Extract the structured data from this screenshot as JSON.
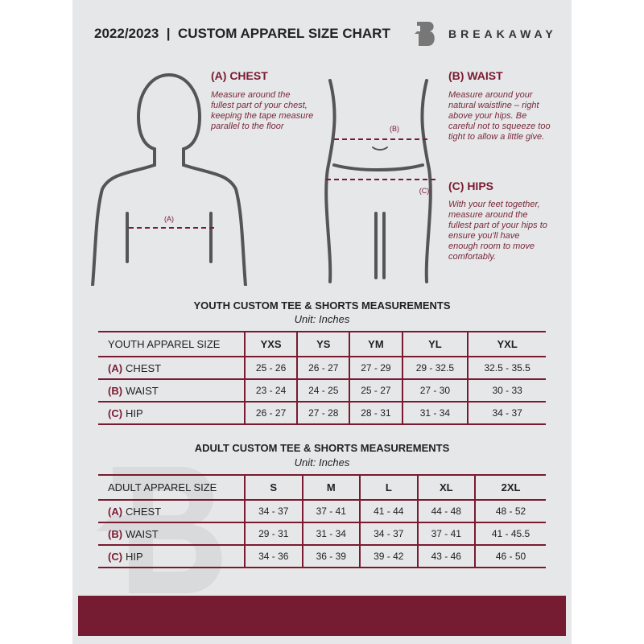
{
  "header": {
    "title": "2022/2023  |  CUSTOM APPAREL SIZE CHART",
    "brand": "BREAKAWAY",
    "watermark": "B"
  },
  "chest": {
    "heading": "(A) CHEST",
    "text": "Measure around the fullest part of your chest, keeping the tape measure parallel to the floor",
    "marker": "(A)"
  },
  "waist": {
    "heading": "(B) WAIST",
    "text": "Measure around your natural waistline – right above your hips. Be careful not to squeeze too tight to allow a little give.",
    "marker": "(B)"
  },
  "hips": {
    "heading": "(C) HIPS",
    "text": "With your feet together, measure around the fullest part of your hips to ensure you'll have enough room to move comfortably.",
    "marker": "(C)"
  },
  "youth": {
    "title": "YOUTH CUSTOM TEE & SHORTS MEASUREMENTS",
    "unit": "Unit: Inches",
    "header": "YOUTH APPAREL SIZE",
    "sizes": [
      "YXS",
      "YS",
      "YM",
      "YL",
      "YXL"
    ],
    "rows": [
      {
        "letter": "(A)",
        "label": "CHEST",
        "values": [
          "25 - 26",
          "26 - 27",
          "27 - 29",
          "29 - 32.5",
          "32.5 - 35.5"
        ]
      },
      {
        "letter": "(B)",
        "label": "WAIST",
        "values": [
          "23 - 24",
          "24 - 25",
          "25 - 27",
          "27 - 30",
          "30 - 33"
        ]
      },
      {
        "letter": "(C)",
        "label": "HIP",
        "values": [
          "26 - 27",
          "27 - 28",
          "28 - 31",
          "31 - 34",
          "34 - 37"
        ]
      }
    ]
  },
  "adult": {
    "title": "ADULT CUSTOM TEE & SHORTS MEASUREMENTS",
    "unit": "Unit: Inches",
    "header": "ADULT APPAREL SIZE",
    "sizes": [
      "S",
      "M",
      "L",
      "XL",
      "2XL"
    ],
    "rows": [
      {
        "letter": "(A)",
        "label": "CHEST",
        "values": [
          "34 - 37",
          "37 - 41",
          "41 - 44",
          "44 - 48",
          "48 - 52"
        ]
      },
      {
        "letter": "(B)",
        "label": "WAIST",
        "values": [
          "29 - 31",
          "31 - 34",
          "34 - 37",
          "37 - 41",
          "41 - 45.5"
        ]
      },
      {
        "letter": "(C)",
        "label": "HIP",
        "values": [
          "34 - 36",
          "36 - 39",
          "39 - 42",
          "43 - 46",
          "46 - 50"
        ]
      }
    ]
  },
  "colors": {
    "accent": "#7a1a30",
    "footer": "#751c32",
    "panel": "#e6e7e9"
  }
}
